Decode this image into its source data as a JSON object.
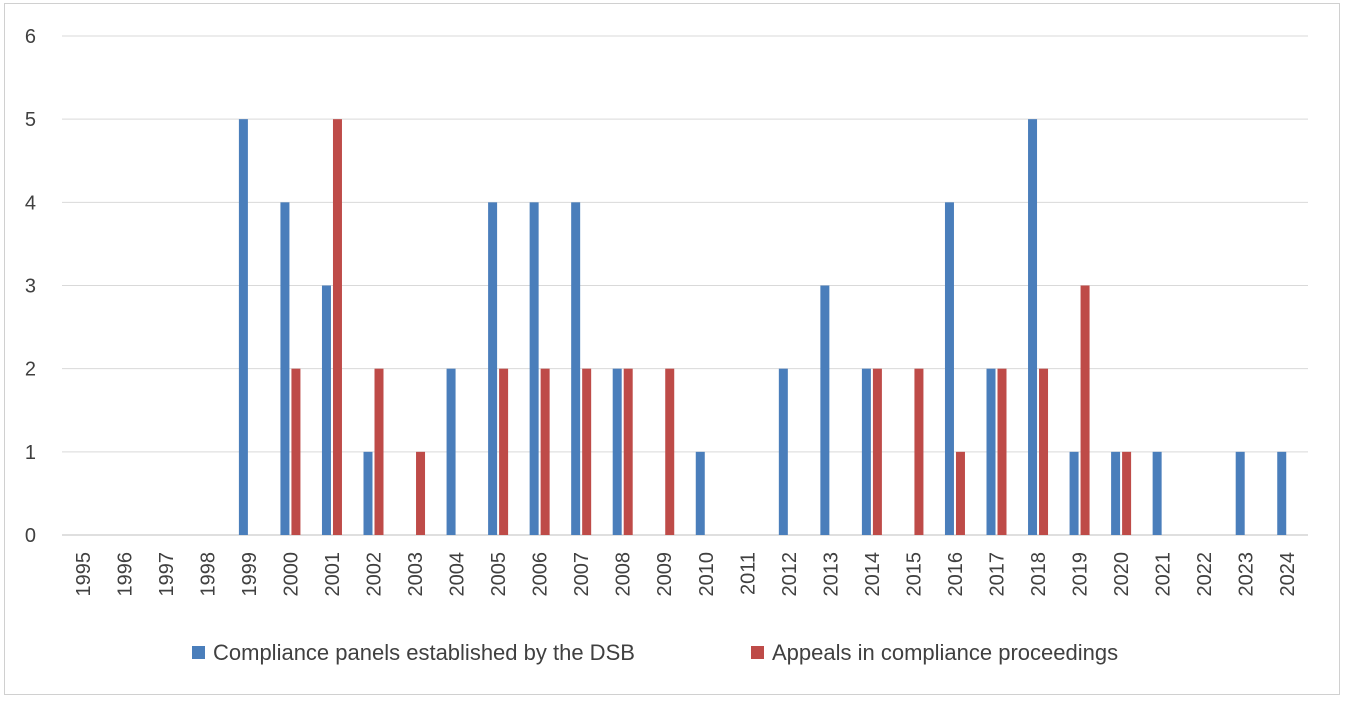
{
  "chart_data": {
    "type": "bar",
    "title": "",
    "xlabel": "",
    "ylabel": "",
    "ylim": [
      0,
      6
    ],
    "yticks": [
      0,
      1,
      2,
      3,
      4,
      5,
      6
    ],
    "grid": true,
    "legend_position": "bottom",
    "categories": [
      "1995",
      "1996",
      "1997",
      "1998",
      "1999",
      "2000",
      "2001",
      "2002",
      "2003",
      "2004",
      "2005",
      "2006",
      "2007",
      "2008",
      "2009",
      "2010",
      "2011",
      "2012",
      "2013",
      "2014",
      "2015",
      "2016",
      "2017",
      "2018",
      "2019",
      "2020",
      "2021",
      "2022",
      "2023",
      "2024"
    ],
    "series": [
      {
        "name": "Compliance panels established by the DSB",
        "color": "#4a7ebb",
        "values": [
          0,
          0,
          0,
          0,
          5,
          4,
          3,
          1,
          0,
          2,
          4,
          4,
          4,
          2,
          0,
          1,
          0,
          2,
          3,
          2,
          0,
          4,
          2,
          5,
          1,
          1,
          1,
          0,
          1,
          1
        ]
      },
      {
        "name": "Appeals in compliance proceedings",
        "color": "#be4b48",
        "values": [
          0,
          0,
          0,
          0,
          0,
          2,
          5,
          2,
          1,
          0,
          2,
          2,
          2,
          2,
          2,
          0,
          0,
          0,
          0,
          2,
          2,
          1,
          2,
          2,
          3,
          1,
          0,
          0,
          0,
          0
        ]
      }
    ]
  }
}
